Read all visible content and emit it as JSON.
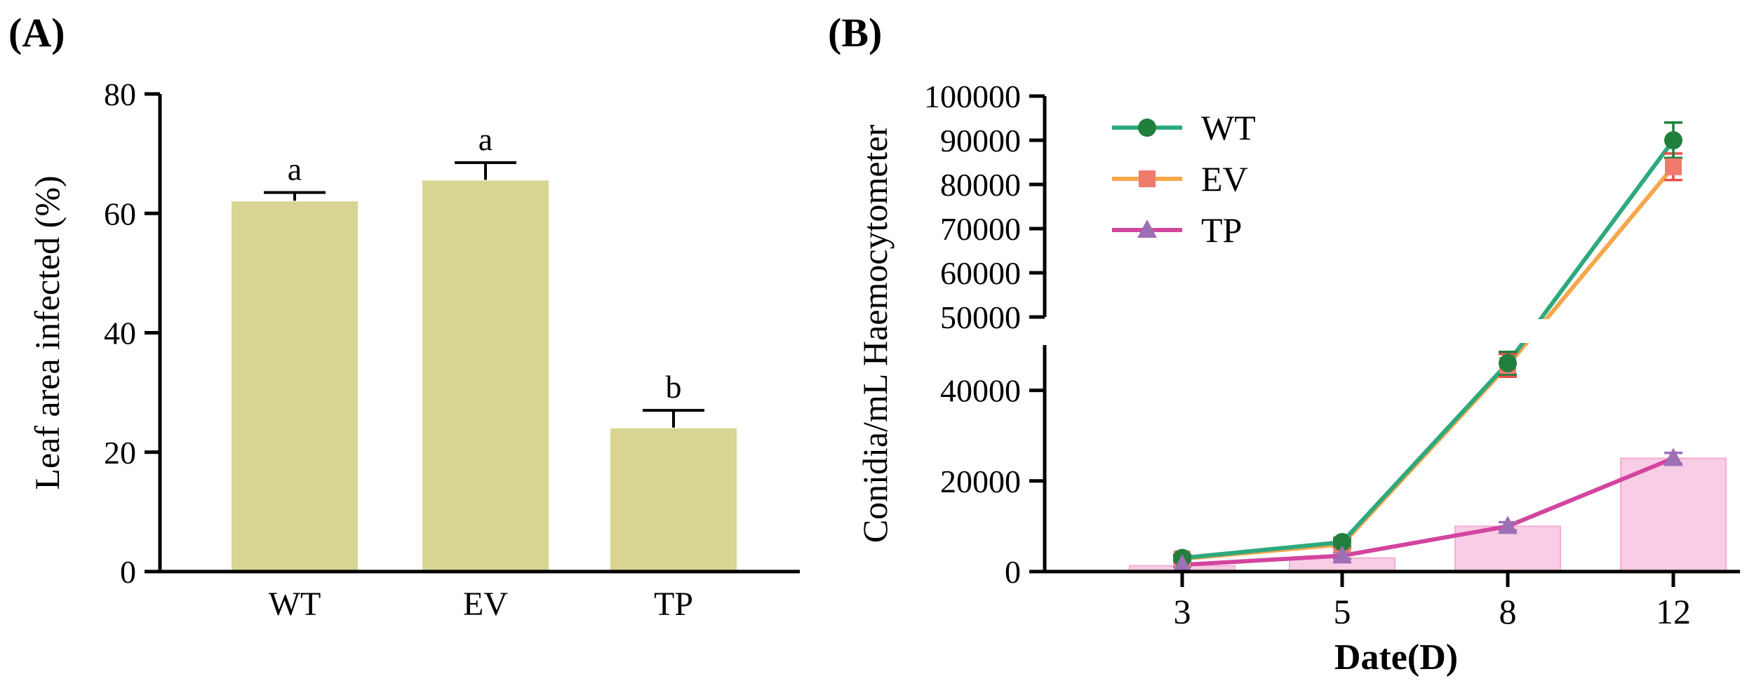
{
  "figure": {
    "background": "#ffffff",
    "axis_color": "#000000"
  },
  "chart_data": [
    {
      "id": "panel_a",
      "panel_label": "(A)",
      "type": "bar",
      "categories": [
        "WT",
        "EV",
        "TP"
      ],
      "values": [
        62,
        65.5,
        24
      ],
      "errors": [
        1.5,
        3,
        3
      ],
      "sig_letters": [
        "a",
        "a",
        "b"
      ],
      "title": "",
      "xlabel": "",
      "ylabel": "Leaf area infected (%)",
      "ylim": [
        0,
        80
      ],
      "yticks": [
        0,
        20,
        40,
        60,
        80
      ],
      "bar_color": "#d8d592",
      "error_color": "#000000",
      "grid": false
    },
    {
      "id": "panel_b",
      "panel_label": "(B)",
      "type": "line",
      "x": [
        3,
        5,
        8,
        12
      ],
      "xlabel": "Date(D)",
      "ylabel": "Conidia/mL Haemocytometer",
      "grid": false,
      "legend_position": "top-left",
      "axis_break": {
        "lower_range": [
          0,
          50000
        ],
        "upper_range": [
          50000,
          100000
        ],
        "lower_ticks": [
          0,
          20000,
          40000
        ],
        "upper_ticks": [
          50000,
          60000,
          70000,
          80000,
          90000,
          100000
        ]
      },
      "series": [
        {
          "name": "WT",
          "values": [
            3000,
            6500,
            46000,
            90000
          ],
          "errors": [
            700,
            900,
            2500,
            4000
          ],
          "line_color": "#2ea97d",
          "marker": "circle",
          "marker_color": "#217f3c",
          "error_color": "#217f3c"
        },
        {
          "name": "EV",
          "values": [
            2800,
            6000,
            45500,
            84000
          ],
          "errors": [
            700,
            900,
            2500,
            3000
          ],
          "line_color": "#f7a64b",
          "marker": "square",
          "marker_color": "#ef7b6d",
          "error_color": "#e8504a"
        },
        {
          "name": "TP",
          "values": [
            1500,
            3500,
            10000,
            25000
          ],
          "errors": [
            500,
            700,
            900,
            1200
          ],
          "line_color": "#d2459f",
          "marker": "triangle",
          "marker_color": "#9d6fb5",
          "error_color": "#9d6fb5"
        }
      ],
      "background_bars": {
        "series": "TP",
        "values": [
          1300,
          3000,
          10000,
          25000
        ],
        "fill": "#f9cde5",
        "edge": "#f2aed3"
      }
    }
  ]
}
